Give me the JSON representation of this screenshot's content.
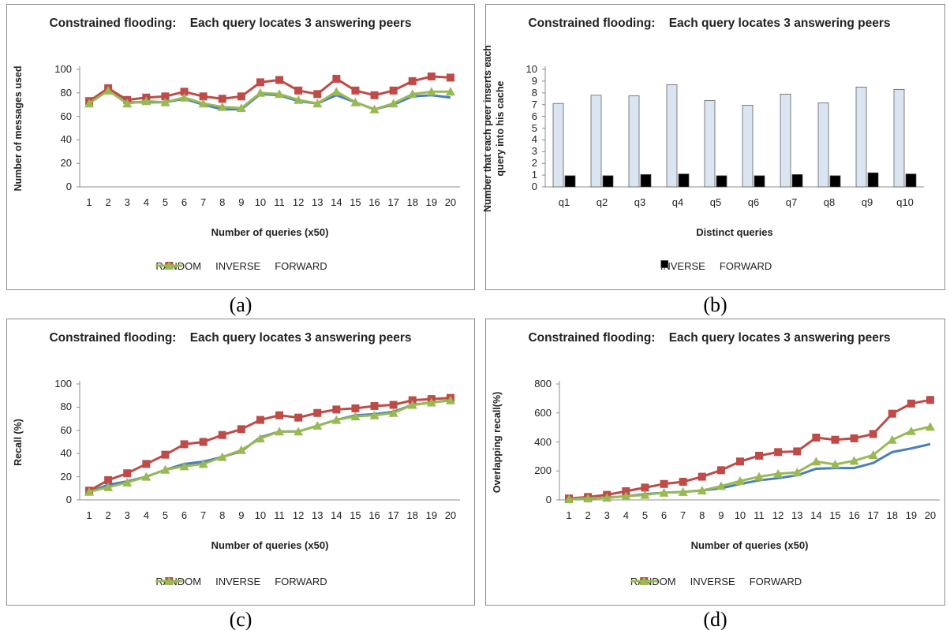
{
  "chart_data": [
    {
      "type": "line",
      "title": "Constrained flooding:    Each query locates 3 answering peers",
      "caption": "(a)",
      "x_label": "Number of queries (x50)",
      "y_label": "Number of messages used",
      "categories": [
        "1",
        "2",
        "3",
        "4",
        "5",
        "6",
        "7",
        "8",
        "9",
        "10",
        "11",
        "12",
        "13",
        "14",
        "15",
        "16",
        "17",
        "18",
        "19",
        "20"
      ],
      "series": [
        {
          "name": "RANDOM",
          "color": "#4a7ebb",
          "marker": "none",
          "values": [
            72,
            82,
            72,
            72,
            72,
            75,
            70,
            66,
            66,
            79,
            78,
            73,
            71,
            78,
            72,
            66,
            70,
            77,
            78,
            76
          ]
        },
        {
          "name": "INVERSE",
          "color": "#be4b48",
          "marker": "square",
          "values": [
            73,
            84,
            74,
            76,
            77,
            81,
            77,
            75,
            77,
            89,
            91,
            82,
            79,
            92,
            82,
            78,
            82,
            90,
            94,
            93
          ]
        },
        {
          "name": "FORWARD",
          "color": "#98b954",
          "marker": "triangle",
          "values": [
            71,
            82,
            71,
            73,
            72,
            76,
            71,
            68,
            67,
            80,
            79,
            74,
            71,
            81,
            72,
            66,
            71,
            79,
            81,
            81
          ]
        }
      ],
      "ylim": [
        0,
        100
      ],
      "yticks": [
        0,
        20,
        40,
        60,
        80,
        100
      ],
      "grid": false,
      "legend": "bottom"
    },
    {
      "type": "bar",
      "title": "Constrained flooding:    Each query locates 3 answering peers",
      "caption": "(b)",
      "x_label": "Distinct queries",
      "y_label": "Number that each peer inserts each query into his cache",
      "categories": [
        "q1",
        "q2",
        "q3",
        "q4",
        "q5",
        "q6",
        "q7",
        "q8",
        "q9",
        "q10"
      ],
      "series": [
        {
          "name": "INVERSE",
          "color": "#dbe5f1",
          "values": [
            7.1,
            7.8,
            7.75,
            8.7,
            7.35,
            6.95,
            7.9,
            7.15,
            8.5,
            8.3
          ]
        },
        {
          "name": "FORWARD",
          "color": "#000000",
          "values": [
            0.95,
            0.95,
            1.05,
            1.1,
            0.95,
            0.95,
            1.05,
            0.95,
            1.2,
            1.1
          ]
        }
      ],
      "ylim": [
        0,
        10
      ],
      "yticks": [
        0,
        1,
        2,
        3,
        4,
        5,
        6,
        7,
        8,
        9,
        10
      ],
      "grid": false,
      "legend": "bottom"
    },
    {
      "type": "line",
      "title": "Constrained flooding:    Each query locates 3 answering peers",
      "caption": "(c)",
      "x_label": "Number of queries (x50)",
      "y_label": "Recall (%)",
      "categories": [
        "1",
        "2",
        "3",
        "4",
        "5",
        "6",
        "7",
        "8",
        "9",
        "10",
        "11",
        "12",
        "13",
        "14",
        "15",
        "16",
        "17",
        "18",
        "19",
        "20"
      ],
      "series": [
        {
          "name": "RANDOM",
          "color": "#4a7ebb",
          "marker": "none",
          "values": [
            7,
            13,
            16,
            20,
            26,
            31,
            33,
            37,
            42,
            54,
            59,
            59,
            64,
            69,
            73,
            74,
            76,
            82,
            84,
            86
          ]
        },
        {
          "name": "INVERSE",
          "color": "#be4b48",
          "marker": "square",
          "values": [
            8,
            17,
            23,
            31,
            39,
            48,
            50,
            56,
            61,
            69,
            73,
            71,
            75,
            78,
            79,
            81,
            82,
            86,
            87,
            88
          ]
        },
        {
          "name": "FORWARD",
          "color": "#98b954",
          "marker": "triangle",
          "values": [
            7,
            11,
            15,
            20,
            26,
            29,
            31,
            37,
            43,
            53,
            59,
            59,
            64,
            69,
            72,
            73,
            75,
            82,
            84,
            86
          ]
        }
      ],
      "ylim": [
        0,
        100
      ],
      "yticks": [
        0,
        20,
        40,
        60,
        80,
        100
      ],
      "grid": false,
      "legend": "bottom"
    },
    {
      "type": "line",
      "title": "Constrained flooding:    Each query locates 3 answering peers",
      "caption": "(d)",
      "x_label": "Number of queries (x50)",
      "y_label": "Overlapping recall(%)",
      "categories": [
        "1",
        "2",
        "3",
        "4",
        "5",
        "6",
        "7",
        "8",
        "9",
        "10",
        "11",
        "12",
        "13",
        "14",
        "15",
        "16",
        "17",
        "18",
        "19",
        "20"
      ],
      "series": [
        {
          "name": "RANDOM",
          "color": "#4a7ebb",
          "marker": "none",
          "values": [
            5,
            10,
            15,
            25,
            40,
            50,
            55,
            65,
            80,
            110,
            135,
            150,
            170,
            215,
            220,
            220,
            255,
            330,
            355,
            385
          ]
        },
        {
          "name": "INVERSE",
          "color": "#be4b48",
          "marker": "square",
          "values": [
            10,
            20,
            35,
            60,
            85,
            110,
            125,
            160,
            205,
            265,
            305,
            330,
            335,
            430,
            415,
            425,
            455,
            595,
            665,
            690
          ]
        },
        {
          "name": "FORWARD",
          "color": "#98b954",
          "marker": "triangle",
          "values": [
            5,
            10,
            15,
            25,
            35,
            50,
            55,
            65,
            95,
            130,
            160,
            180,
            190,
            265,
            245,
            270,
            310,
            415,
            475,
            505
          ]
        }
      ],
      "ylim": [
        0,
        800
      ],
      "yticks": [
        0,
        200,
        400,
        600,
        800
      ],
      "grid": false,
      "legend": "bottom"
    }
  ]
}
